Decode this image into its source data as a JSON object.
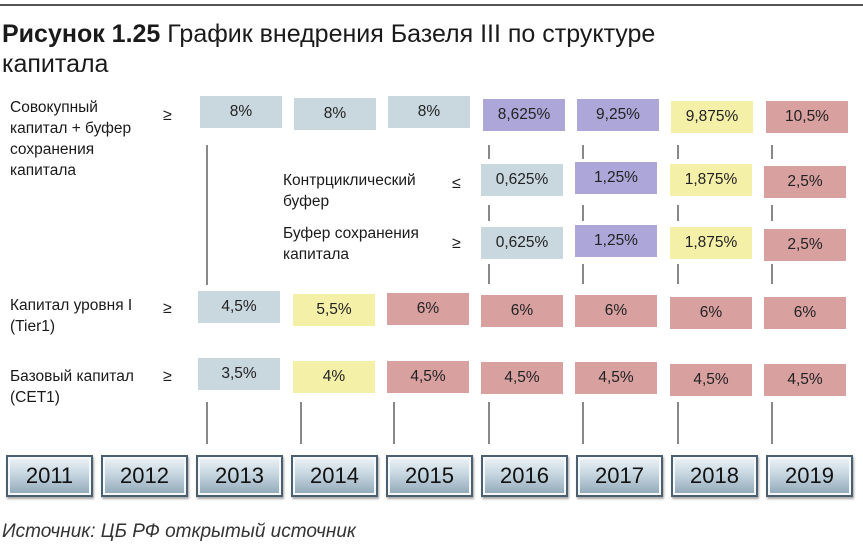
{
  "title": {
    "number": "Рисунок 1.25",
    "line1": "График внедрения Базеля III по структуре",
    "line2": "капитала"
  },
  "labels": {
    "total_capital": [
      "Совокупный",
      "капитал + буфер",
      "сохранения",
      "капитала"
    ],
    "countercyclical": [
      "Контрциклический",
      "буфер"
    ],
    "conservation": [
      "Буфер сохранения",
      "капитала"
    ],
    "tier1": [
      "Капитал уровня I",
      "(Tier1)"
    ],
    "cet1": [
      "Базовый капитал",
      "(CET1)"
    ]
  },
  "signs": {
    "ge": "≥",
    "le": "≤"
  },
  "years": [
    "2011",
    "2012",
    "2013",
    "2014",
    "2015",
    "2016",
    "2017",
    "2018",
    "2019"
  ],
  "rows": {
    "total": [
      "8%",
      "8%",
      "8%",
      "8,625%",
      "9,25%",
      "9,875%",
      "10,5%"
    ],
    "countercyclical": [
      "0,625%",
      "1,25%",
      "1,875%",
      "2,5%"
    ],
    "conservation": [
      "0,625%",
      "1,25%",
      "1,875%",
      "2,5%"
    ],
    "tier1": [
      "4,5%",
      "5,5%",
      "6%",
      "6%",
      "6%",
      "6%",
      "6%"
    ],
    "cet1": [
      "3,5%",
      "4%",
      "4,5%",
      "4,5%",
      "4,5%",
      "4,5%",
      "4,5%"
    ]
  },
  "colors": {
    "gray": "#c9d7de",
    "yellow": "#f5f0a8",
    "pink": "#d9a0a0",
    "purple": "#ada6d8"
  },
  "source": "Источник: ЦБ РФ открытый источник"
}
